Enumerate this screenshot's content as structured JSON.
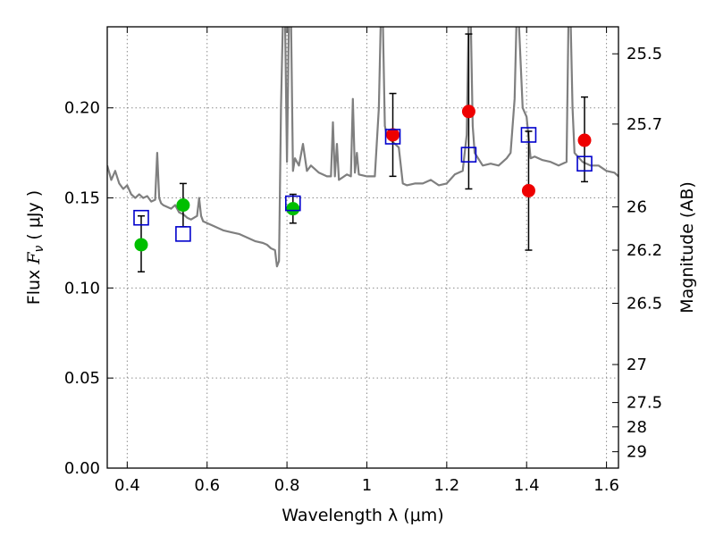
{
  "chart_data": {
    "type": "scatter",
    "xlabel": "Wavelength  λ (μm)",
    "ylabel": "Flux  F_ν  ( μJy )",
    "ylabel_parts": {
      "pre": "Flux  ",
      "sym": "F",
      "sub": "ν",
      "post": "  ( μJy )"
    },
    "y2label": "Magnitude (AB)",
    "xlim": [
      0.35,
      1.63
    ],
    "ylim": [
      0.0,
      0.245
    ],
    "grid": true,
    "x_ticks": [
      0.4,
      0.6,
      0.8,
      1.0,
      1.2,
      1.4,
      1.6
    ],
    "x_tick_labels": [
      "0.4",
      "0.6",
      "0.8",
      "1",
      "1.2",
      "1.4",
      "1.6"
    ],
    "y_ticks": [
      0.0,
      0.05,
      0.1,
      0.15,
      0.2
    ],
    "y_tick_labels": [
      "0.00",
      "0.05",
      "0.10",
      "0.15",
      "0.20"
    ],
    "mag_ticks": [
      {
        "label": "25.5",
        "flux": 0.23
      },
      {
        "label": "25.7",
        "flux": 0.191
      },
      {
        "label": "26",
        "flux": 0.145
      },
      {
        "label": "26.2",
        "flux": 0.121
      },
      {
        "label": "26.5",
        "flux": 0.0915
      },
      {
        "label": "27",
        "flux": 0.0575
      },
      {
        "label": "27.5",
        "flux": 0.0364
      },
      {
        "label": "28",
        "flux": 0.0229
      },
      {
        "label": "29",
        "flux": 0.0091
      }
    ],
    "colors": {
      "model": "#7f7f7f",
      "green": "#00bf00",
      "red": "#ee0000",
      "model_photometry": "#0000cc",
      "errorbar": "#000000",
      "grid": "#8c8c8c"
    },
    "model_sed": {
      "x": [
        0.35,
        0.36,
        0.37,
        0.38,
        0.39,
        0.4,
        0.41,
        0.42,
        0.43,
        0.44,
        0.45,
        0.46,
        0.47,
        0.475,
        0.48,
        0.485,
        0.49,
        0.5,
        0.51,
        0.52,
        0.53,
        0.54,
        0.55,
        0.56,
        0.575,
        0.58,
        0.585,
        0.59,
        0.6,
        0.62,
        0.64,
        0.66,
        0.68,
        0.7,
        0.72,
        0.74,
        0.75,
        0.76,
        0.77,
        0.775,
        0.78,
        0.785,
        0.79,
        0.795,
        0.8,
        0.805,
        0.81,
        0.815,
        0.82,
        0.83,
        0.84,
        0.85,
        0.86,
        0.87,
        0.88,
        0.9,
        0.91,
        0.915,
        0.92,
        0.925,
        0.93,
        0.95,
        0.96,
        0.965,
        0.97,
        0.975,
        0.98,
        1.0,
        1.02,
        1.03,
        1.035,
        1.04,
        1.045,
        1.05,
        1.06,
        1.07,
        1.08,
        1.09,
        1.1,
        1.12,
        1.14,
        1.16,
        1.18,
        1.2,
        1.22,
        1.24,
        1.25,
        1.255,
        1.26,
        1.265,
        1.27,
        1.29,
        1.31,
        1.33,
        1.35,
        1.36,
        1.37,
        1.375,
        1.38,
        1.39,
        1.4,
        1.41,
        1.42,
        1.44,
        1.46,
        1.48,
        1.5,
        1.505,
        1.51,
        1.515,
        1.52,
        1.54,
        1.56,
        1.58,
        1.6,
        1.62,
        1.63
      ],
      "y": [
        0.168,
        0.16,
        0.165,
        0.158,
        0.155,
        0.157,
        0.152,
        0.15,
        0.152,
        0.15,
        0.151,
        0.148,
        0.149,
        0.175,
        0.15,
        0.147,
        0.146,
        0.145,
        0.144,
        0.146,
        0.142,
        0.141,
        0.139,
        0.138,
        0.14,
        0.15,
        0.14,
        0.137,
        0.136,
        0.134,
        0.132,
        0.131,
        0.13,
        0.128,
        0.126,
        0.125,
        0.124,
        0.122,
        0.121,
        0.112,
        0.115,
        0.2,
        0.25,
        0.25,
        0.17,
        0.25,
        0.25,
        0.165,
        0.172,
        0.168,
        0.18,
        0.165,
        0.168,
        0.166,
        0.164,
        0.162,
        0.162,
        0.192,
        0.162,
        0.18,
        0.16,
        0.163,
        0.162,
        0.205,
        0.164,
        0.175,
        0.163,
        0.162,
        0.162,
        0.2,
        0.25,
        0.25,
        0.19,
        0.185,
        0.182,
        0.18,
        0.178,
        0.158,
        0.157,
        0.158,
        0.158,
        0.16,
        0.157,
        0.158,
        0.163,
        0.165,
        0.185,
        0.25,
        0.25,
        0.19,
        0.175,
        0.168,
        0.169,
        0.168,
        0.172,
        0.175,
        0.205,
        0.25,
        0.25,
        0.2,
        0.195,
        0.172,
        0.173,
        0.171,
        0.17,
        0.168,
        0.17,
        0.25,
        0.25,
        0.2,
        0.175,
        0.17,
        0.168,
        0.168,
        0.165,
        0.164,
        0.162
      ]
    },
    "observed_green": [
      {
        "x": 0.435,
        "y": 0.124,
        "err_low": 0.015,
        "err_high": 0.016
      },
      {
        "x": 0.54,
        "y": 0.146,
        "err_low": 0.012,
        "err_high": 0.012
      },
      {
        "x": 0.815,
        "y": 0.144,
        "err_low": 0.008,
        "err_high": 0.008
      }
    ],
    "observed_red": [
      {
        "x": 1.065,
        "y": 0.185,
        "err_low": 0.023,
        "err_high": 0.023
      },
      {
        "x": 1.255,
        "y": 0.198,
        "err_low": 0.043,
        "err_high": 0.043
      },
      {
        "x": 1.405,
        "y": 0.154,
        "err_low": 0.033,
        "err_high": 0.033
      },
      {
        "x": 1.545,
        "y": 0.182,
        "err_low": 0.023,
        "err_high": 0.024
      }
    ],
    "model_photometry": [
      {
        "x": 0.435,
        "y": 0.139
      },
      {
        "x": 0.54,
        "y": 0.13
      },
      {
        "x": 0.815,
        "y": 0.147
      },
      {
        "x": 1.065,
        "y": 0.184
      },
      {
        "x": 1.255,
        "y": 0.174
      },
      {
        "x": 1.405,
        "y": 0.185
      },
      {
        "x": 1.545,
        "y": 0.169
      }
    ]
  }
}
